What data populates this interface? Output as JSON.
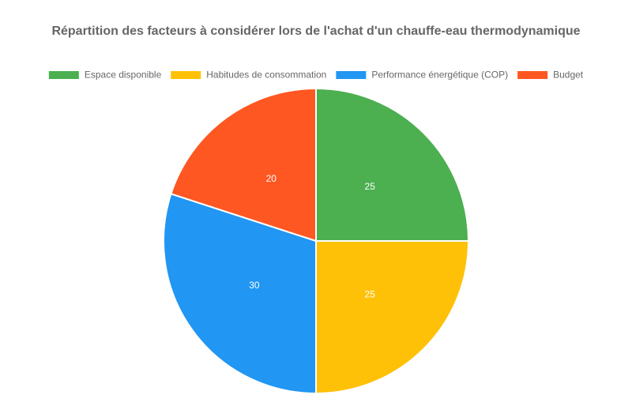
{
  "chart_data": {
    "type": "pie",
    "title": "Répartition des facteurs à considérer lors de l'achat d'un chauffe-eau thermodynamique",
    "series": [
      {
        "name": "Espace disponible",
        "color": "#4caf50",
        "values": [
          25
        ]
      },
      {
        "name": "Habitudes de consommation",
        "color": "#ffc107",
        "values": [
          25
        ]
      },
      {
        "name": "Performance énergétique (COP)",
        "color": "#2196f3",
        "values": [
          30
        ]
      },
      {
        "name": "Budget",
        "color": "#ff5722",
        "values": [
          20
        ]
      }
    ],
    "legend": "top"
  }
}
